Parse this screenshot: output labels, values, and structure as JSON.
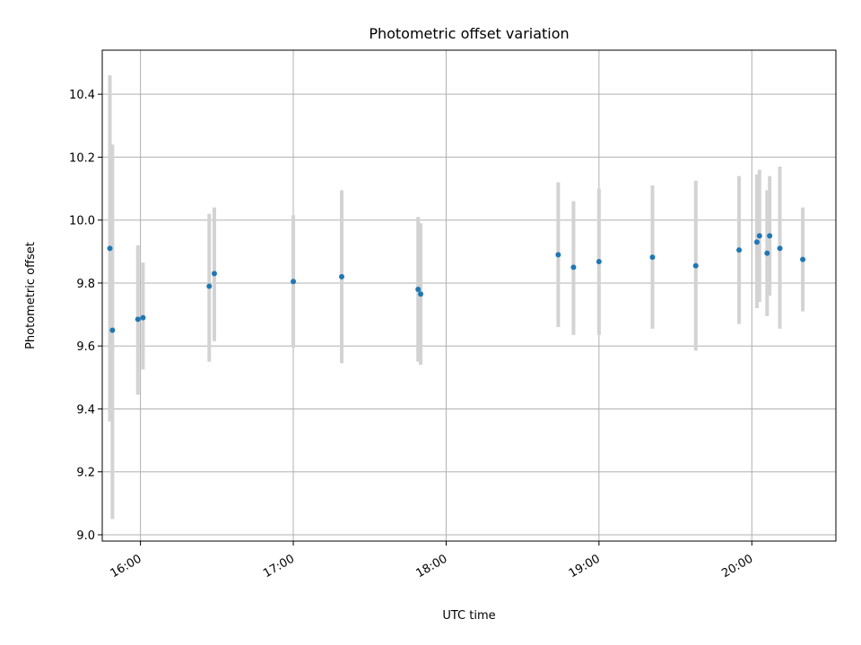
{
  "chart_data": {
    "type": "scatter",
    "title": "Photometric offset variation",
    "xlabel": "UTC time",
    "ylabel": "Photometric offset",
    "x_axis": {
      "kind": "time",
      "range": [
        "15:45",
        "20:33"
      ],
      "ticks": [
        "16:00",
        "17:00",
        "18:00",
        "19:00",
        "20:00"
      ]
    },
    "y_axis": {
      "range": [
        8.98,
        10.54
      ],
      "ticks": [
        "9.0",
        "9.2",
        "9.4",
        "9.6",
        "9.8",
        "10.0",
        "10.2",
        "10.4"
      ]
    },
    "grid": true,
    "legend": "none",
    "colors": {
      "points": "#1f77b4",
      "error_bars": "#d3d3d3"
    },
    "points": [
      {
        "time": "15:48",
        "y": 9.91,
        "ylow": 9.36,
        "yhigh": 10.46
      },
      {
        "time": "15:49",
        "y": 9.65,
        "ylow": 9.05,
        "yhigh": 10.24
      },
      {
        "time": "15:59",
        "y": 9.685,
        "ylow": 9.445,
        "yhigh": 9.92
      },
      {
        "time": "16:01",
        "y": 9.69,
        "ylow": 9.525,
        "yhigh": 9.865
      },
      {
        "time": "16:27",
        "y": 9.79,
        "ylow": 9.55,
        "yhigh": 10.02
      },
      {
        "time": "16:29",
        "y": 9.83,
        "ylow": 9.615,
        "yhigh": 10.04
      },
      {
        "time": "17:00",
        "y": 9.805,
        "ylow": 9.595,
        "yhigh": 10.015
      },
      {
        "time": "17:19",
        "y": 9.82,
        "ylow": 9.545,
        "yhigh": 10.095
      },
      {
        "time": "17:49",
        "y": 9.78,
        "ylow": 9.55,
        "yhigh": 10.01
      },
      {
        "time": "17:50",
        "y": 9.765,
        "ylow": 9.54,
        "yhigh": 9.99
      },
      {
        "time": "18:44",
        "y": 9.89,
        "ylow": 9.66,
        "yhigh": 10.12
      },
      {
        "time": "18:50",
        "y": 9.85,
        "ylow": 9.635,
        "yhigh": 10.06
      },
      {
        "time": "19:00",
        "y": 9.868,
        "ylow": 9.635,
        "yhigh": 10.1
      },
      {
        "time": "19:21",
        "y": 9.882,
        "ylow": 9.655,
        "yhigh": 10.11
      },
      {
        "time": "19:38",
        "y": 9.855,
        "ylow": 9.585,
        "yhigh": 10.125
      },
      {
        "time": "19:55",
        "y": 9.905,
        "ylow": 9.67,
        "yhigh": 10.14
      },
      {
        "time": "20:02",
        "y": 9.93,
        "ylow": 9.72,
        "yhigh": 10.145
      },
      {
        "time": "20:03",
        "y": 9.95,
        "ylow": 9.74,
        "yhigh": 10.16
      },
      {
        "time": "20:06",
        "y": 9.895,
        "ylow": 9.695,
        "yhigh": 10.095
      },
      {
        "time": "20:07",
        "y": 9.95,
        "ylow": 9.76,
        "yhigh": 10.14
      },
      {
        "time": "20:11",
        "y": 9.91,
        "ylow": 9.655,
        "yhigh": 10.17
      },
      {
        "time": "20:20",
        "y": 9.875,
        "ylow": 9.71,
        "yhigh": 10.04
      }
    ]
  }
}
